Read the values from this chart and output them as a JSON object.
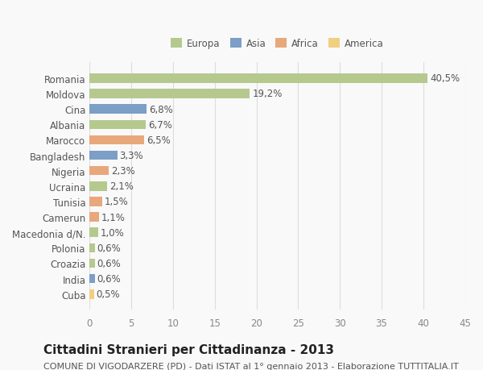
{
  "countries": [
    "Romania",
    "Moldova",
    "Cina",
    "Albania",
    "Marocco",
    "Bangladesh",
    "Nigeria",
    "Ucraina",
    "Tunisia",
    "Camerun",
    "Macedonia d/N.",
    "Polonia",
    "Croazia",
    "India",
    "Cuba"
  ],
  "values": [
    40.5,
    19.2,
    6.8,
    6.7,
    6.5,
    3.3,
    2.3,
    2.1,
    1.5,
    1.1,
    1.0,
    0.6,
    0.6,
    0.6,
    0.5
  ],
  "labels": [
    "40,5%",
    "19,2%",
    "6,8%",
    "6,7%",
    "6,5%",
    "3,3%",
    "2,3%",
    "2,1%",
    "1,5%",
    "1,1%",
    "1,0%",
    "0,6%",
    "0,6%",
    "0,6%",
    "0,5%"
  ],
  "colors": [
    "#b5c98e",
    "#b5c98e",
    "#7b9fc7",
    "#b5c98e",
    "#e8a87c",
    "#7b9fc7",
    "#e8a87c",
    "#b5c98e",
    "#e8a87c",
    "#e8a87c",
    "#b5c98e",
    "#b5c98e",
    "#b5c98e",
    "#7b9fc7",
    "#f0d080"
  ],
  "legend_labels": [
    "Europa",
    "Asia",
    "Africa",
    "America"
  ],
  "legend_colors": [
    "#b5c98e",
    "#7b9fc7",
    "#e8a87c",
    "#f0d080"
  ],
  "title": "Cittadini Stranieri per Cittadinanza - 2013",
  "subtitle": "COMUNE DI VIGODARZERE (PD) - Dati ISTAT al 1° gennaio 2013 - Elaborazione TUTTITALIA.IT",
  "xlim": [
    0,
    45
  ],
  "xticks": [
    0,
    5,
    10,
    15,
    20,
    25,
    30,
    35,
    40,
    45
  ],
  "background_color": "#f9f9f9",
  "grid_color": "#dddddd",
  "bar_height": 0.6,
  "label_fontsize": 8.5,
  "tick_fontsize": 8.5,
  "title_fontsize": 11,
  "subtitle_fontsize": 8
}
